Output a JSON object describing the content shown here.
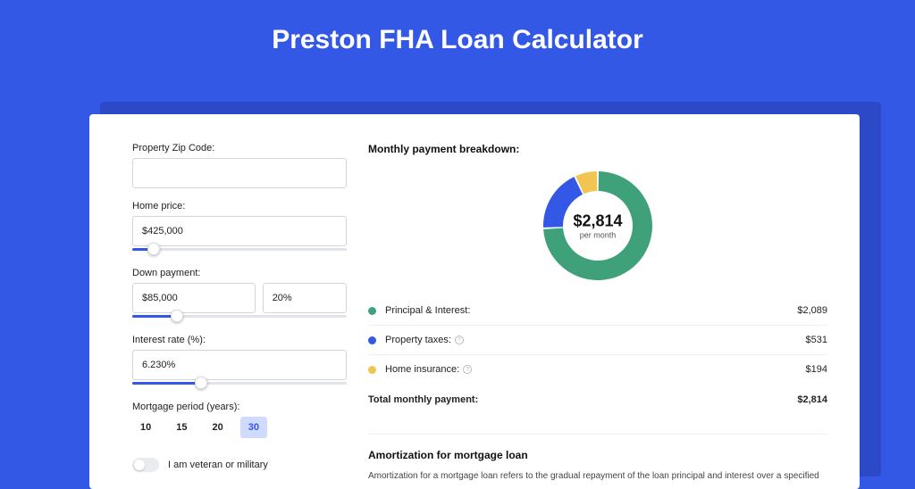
{
  "title": "Preston FHA Loan Calculator",
  "colors": {
    "page_bg": "#3358e6",
    "shadow_panel": "#2c49c8",
    "panel_bg": "#ffffff",
    "slider_done": "#3358e6",
    "slider_remain": "#e0e3ea",
    "period_active_bg": "#cfdafd",
    "period_active_text": "#3358e6",
    "border": "#d0d5dd",
    "divider": "#eef0f3"
  },
  "form": {
    "zip": {
      "label": "Property Zip Code:",
      "value": ""
    },
    "home_price": {
      "label": "Home price:",
      "value": "$425,000",
      "slider_pct": 10
    },
    "down_payment": {
      "label": "Down payment:",
      "value": "$85,000",
      "percent": "20%",
      "slider_pct": 21
    },
    "interest_rate": {
      "label": "Interest rate (%):",
      "value": "6.230%",
      "slider_pct": 32
    },
    "mortgage_period": {
      "label": "Mortgage period (years):",
      "options": [
        "10",
        "15",
        "20",
        "30"
      ],
      "active": "30"
    },
    "veteran": {
      "label": "I am veteran or military",
      "on": false
    }
  },
  "breakdown": {
    "heading": "Monthly payment breakdown:",
    "donut": {
      "size": 126,
      "thickness": 22,
      "center_value": "$2,814",
      "center_sub": "per month",
      "slices": [
        {
          "key": "pi",
          "color": "#3fa17a",
          "value": 2089
        },
        {
          "key": "tax",
          "color": "#3358e6",
          "value": 531
        },
        {
          "key": "ins",
          "color": "#f2c552",
          "value": 194
        }
      ]
    },
    "rows": [
      {
        "dot": "#3fa17a",
        "label": "Principal & Interest:",
        "info": false,
        "value": "$2,089"
      },
      {
        "dot": "#3358e6",
        "label": "Property taxes:",
        "info": true,
        "value": "$531"
      },
      {
        "dot": "#f2c552",
        "label": "Home insurance:",
        "info": true,
        "value": "$194"
      }
    ],
    "total": {
      "label": "Total monthly payment:",
      "value": "$2,814"
    }
  },
  "amortization": {
    "heading": "Amortization for mortgage loan",
    "text": "Amortization for a mortgage loan refers to the gradual repayment of the loan principal and interest over a specified"
  }
}
